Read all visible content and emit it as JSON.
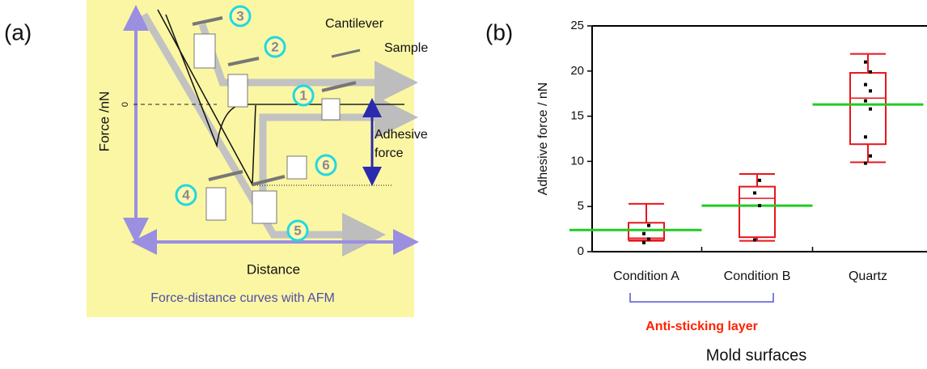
{
  "panel_a": {
    "label": "(a)",
    "cantilever": "Cantilever",
    "sample": "Sample",
    "y_label": "Force /nN",
    "zero": "0",
    "adhesive": "Adhesive",
    "force": "force",
    "x_label": "Distance",
    "caption": "Force-distance curves with AFM",
    "steps": [
      "1",
      "2",
      "3",
      "4",
      "5",
      "6"
    ]
  },
  "chart_data": {
    "type": "box",
    "panel_label": "(b)",
    "y_label": "Adhesive force / nN",
    "x_label": "Mold surfaces",
    "annotation": "Anti-sticking layer",
    "categories": [
      "Condition A",
      "Condition B",
      "Quartz"
    ],
    "boxes": [
      {
        "min": 1.2,
        "q1": 1.3,
        "median": 1.5,
        "q3": 3.2,
        "max": 5.3,
        "mean": 2.4,
        "points": [
          1.0,
          1.4,
          2.0,
          2.9
        ]
      },
      {
        "min": 1.2,
        "q1": 1.6,
        "median": 5.9,
        "q3": 7.2,
        "max": 8.6,
        "mean": 5.1,
        "points": [
          1.3,
          5.1,
          6.5,
          7.9
        ]
      },
      {
        "min": 9.9,
        "q1": 11.9,
        "median": 17.0,
        "q3": 19.8,
        "max": 21.9,
        "mean": 16.3,
        "points": [
          9.8,
          10.6,
          12.7,
          15.8,
          16.7,
          17.8,
          18.5,
          19.9,
          21.0
        ]
      }
    ],
    "box_color": "#e8161b",
    "mean_color": "#22cc22",
    "point_color": "#000000",
    "bracket_color": "#5555d5",
    "annotation_color": "#ff2200",
    "ylim": [
      0,
      25
    ],
    "yticks": [
      0,
      5,
      10,
      15,
      20,
      25
    ]
  }
}
